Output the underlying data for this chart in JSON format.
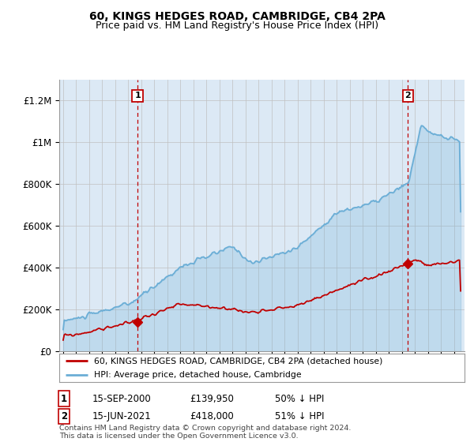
{
  "title": "60, KINGS HEDGES ROAD, CAMBRIDGE, CB4 2PA",
  "subtitle": "Price paid vs. HM Land Registry's House Price Index (HPI)",
  "ylim": [
    0,
    1300000
  ],
  "xlim": [
    1994.7,
    2025.8
  ],
  "yticks": [
    0,
    200000,
    400000,
    600000,
    800000,
    1000000,
    1200000
  ],
  "ytick_labels": [
    "£0",
    "£200K",
    "£400K",
    "£600K",
    "£800K",
    "£1M",
    "£1.2M"
  ],
  "hpi_color": "#6baed6",
  "price_color": "#c00000",
  "marker1_x": 2000.71,
  "marker1_y": 139950,
  "marker2_x": 2021.46,
  "marker2_y": 418000,
  "vline1_x": 2000.71,
  "vline2_x": 2021.46,
  "legend_label1": "60, KINGS HEDGES ROAD, CAMBRIDGE, CB4 2PA (detached house)",
  "legend_label2": "HPI: Average price, detached house, Cambridge",
  "marker1_label": "1",
  "marker2_label": "2",
  "marker1_date": "15-SEP-2000",
  "marker1_price": "£139,950",
  "marker1_pct": "50% ↓ HPI",
  "marker2_date": "15-JUN-2021",
  "marker2_price": "£418,000",
  "marker2_pct": "51% ↓ HPI",
  "footer": "Contains HM Land Registry data © Crown copyright and database right 2024.\nThis data is licensed under the Open Government Licence v3.0.",
  "title_fontsize": 10,
  "subtitle_fontsize": 9,
  "plot_bg_color": "#dce9f5",
  "fig_bg_color": "#ffffff"
}
